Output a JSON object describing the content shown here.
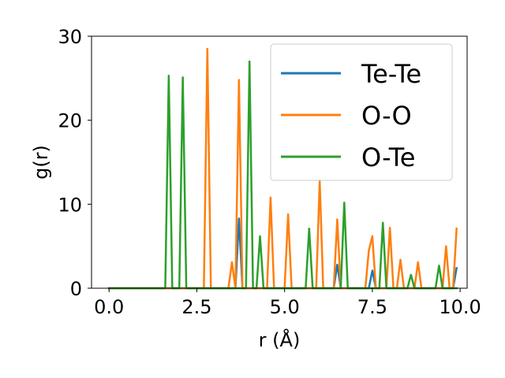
{
  "chart_data": {
    "type": "line",
    "title": "",
    "xlabel": "r (Å)",
    "ylabel": "g(r)",
    "xlim": [
      -0.5,
      10.2
    ],
    "ylim": [
      0,
      30
    ],
    "xticks": [
      0.0,
      2.5,
      5.0,
      7.5,
      10.0
    ],
    "xtick_labels": [
      "0.0",
      "2.5",
      "5.0",
      "7.5",
      "10.0"
    ],
    "yticks": [
      0,
      10,
      20,
      30
    ],
    "ytick_labels": [
      "0",
      "10",
      "20",
      "30"
    ],
    "grid": false,
    "legend_position": "top-right",
    "series": [
      {
        "name": "Te-Te",
        "color": "#1f77b4",
        "x": [
          0.0,
          3.6,
          3.7,
          3.8,
          6.4,
          6.5,
          6.6,
          7.4,
          7.5,
          7.6,
          9.8,
          9.9
        ],
        "y": [
          0.0,
          0.0,
          8.3,
          0.0,
          0.0,
          2.8,
          0.0,
          0.0,
          2.1,
          0.0,
          0.0,
          2.4
        ]
      },
      {
        "name": "O-O",
        "color": "#ff7f0e",
        "x": [
          0.0,
          2.7,
          2.8,
          2.9,
          3.4,
          3.5,
          3.6,
          3.7,
          3.8,
          4.5,
          4.6,
          4.7,
          5.0,
          5.1,
          5.2,
          5.9,
          6.0,
          6.1,
          6.4,
          6.5,
          6.6,
          7.3,
          7.4,
          7.5,
          7.6,
          7.9,
          8.0,
          8.1,
          8.2,
          8.3,
          8.4,
          8.7,
          8.8,
          8.9,
          9.5,
          9.6,
          9.7,
          9.8,
          9.9
        ],
        "y": [
          0.0,
          0.0,
          28.5,
          0.0,
          0.0,
          3.1,
          0.0,
          24.8,
          0.0,
          0.0,
          10.8,
          0.0,
          0.0,
          8.8,
          0.0,
          0.0,
          12.8,
          0.0,
          0.0,
          8.2,
          0.0,
          0.0,
          4.5,
          6.2,
          0.0,
          0.0,
          7.2,
          0.0,
          0.0,
          3.4,
          0.0,
          0.0,
          3.1,
          0.0,
          0.0,
          5.0,
          0.0,
          0.0,
          7.1
        ]
      },
      {
        "name": "O-Te",
        "color": "#2ca02c",
        "x": [
          0.0,
          1.6,
          1.7,
          1.8,
          2.0,
          2.1,
          2.2,
          3.9,
          4.0,
          4.1,
          4.2,
          4.3,
          4.4,
          5.6,
          5.7,
          5.8,
          6.6,
          6.7,
          6.8,
          7.7,
          7.8,
          7.9,
          8.5,
          8.6,
          8.7,
          9.3,
          9.4,
          9.5,
          9.9
        ],
        "y": [
          0.0,
          0.0,
          25.3,
          0.0,
          0.0,
          25.1,
          0.0,
          0.0,
          27.0,
          0.0,
          0.0,
          6.2,
          0.0,
          0.0,
          7.1,
          0.0,
          0.0,
          10.2,
          0.0,
          0.0,
          7.8,
          0.0,
          0.0,
          1.6,
          0.0,
          0.0,
          2.7,
          0.0,
          0.0
        ]
      }
    ]
  }
}
